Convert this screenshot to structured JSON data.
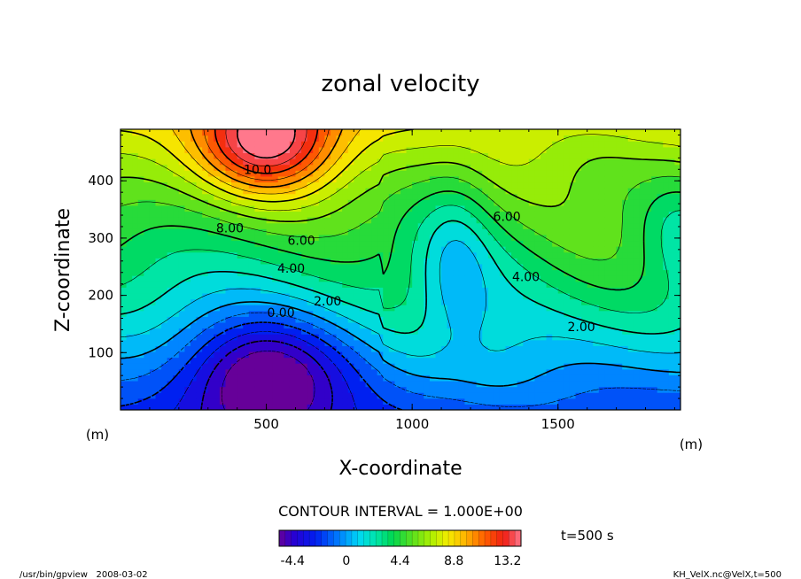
{
  "chart_data": {
    "type": "heatmap",
    "title": "zonal velocity",
    "xlabel": "X-coordinate",
    "ylabel": "Z-coordinate",
    "x_unit": "(m)",
    "y_unit": "(m)",
    "xlim": [
      0,
      1920
    ],
    "ylim": [
      0,
      490
    ],
    "x_ticks": [
      500,
      1000,
      1500
    ],
    "y_ticks": [
      100,
      200,
      300,
      400
    ],
    "x_tick_labels": [
      "500",
      "1000",
      "1500"
    ],
    "y_tick_labels": [
      "100",
      "200",
      "300",
      "400"
    ],
    "contour_interval_text": "CONTOUR INTERVAL = 1.000E+00",
    "time_label": "t=500 s",
    "colorbar": {
      "min": -5.5,
      "max": 14.3,
      "tick_values": [
        -4.4,
        0,
        4.4,
        8.8,
        13.2
      ],
      "tick_labels": [
        "-4.4",
        "0",
        "4.4",
        "8.8",
        "13.2"
      ]
    },
    "contour_labels": [
      {
        "text": "10.0",
        "x": 470,
        "z": 420
      },
      {
        "text": "8.00",
        "x": 375,
        "z": 318
      },
      {
        "text": "6.00",
        "x": 620,
        "z": 296
      },
      {
        "text": "4.00",
        "x": 585,
        "z": 247
      },
      {
        "text": "2.00",
        "x": 710,
        "z": 190
      },
      {
        "text": "0.00",
        "x": 550,
        "z": 170
      },
      {
        "text": "6.00",
        "x": 1325,
        "z": 338
      },
      {
        "text": "4.00",
        "x": 1390,
        "z": 233
      },
      {
        "text": "2.00",
        "x": 1580,
        "z": 145
      }
    ],
    "features": [
      {
        "kind": "maximum",
        "x": 500,
        "z": 465,
        "value": 14
      },
      {
        "kind": "minimum",
        "x": 500,
        "z": 25,
        "value": -5
      }
    ]
  },
  "footer": {
    "left": "/usr/bin/gpview   2008-03-02",
    "right": "KH_VelX.nc@VelX,t=500"
  }
}
